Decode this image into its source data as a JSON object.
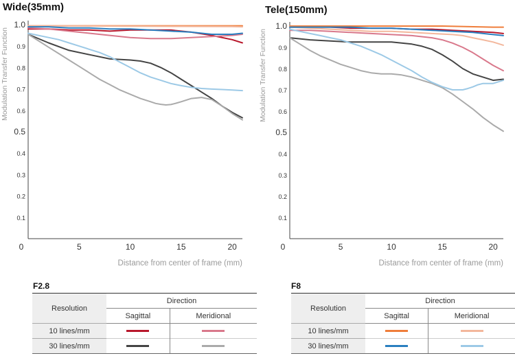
{
  "chart_data": [
    {
      "type": "line",
      "title": "Wide(35mm)",
      "xlabel": "Distance from center of frame (mm)",
      "ylabel": "Modulation Transfer Function",
      "xlim": [
        0,
        21
      ],
      "ylim": [
        0,
        1.0
      ],
      "xticks": [
        "0",
        "5",
        "10",
        "15",
        "20"
      ],
      "yticks": [
        "1.0",
        "0.9",
        "0.8",
        "0.7",
        "0.6",
        "0.5",
        "0.4",
        "0.3",
        "0.2",
        "0.1"
      ],
      "series": [
        {
          "name": "10 lines/mm Sagittal",
          "color": "#b8172b",
          "x": [
            0,
            2,
            4,
            6,
            8,
            10,
            12,
            14,
            16,
            18,
            20,
            21
          ],
          "y": [
            0.98,
            0.98,
            0.975,
            0.975,
            0.97,
            0.975,
            0.975,
            0.975,
            0.965,
            0.95,
            0.93,
            0.915
          ]
        },
        {
          "name": "10 lines/mm Meridional",
          "color": "#d9788b",
          "x": [
            0,
            2,
            4,
            6,
            8,
            10,
            12,
            14,
            16,
            18,
            20,
            21
          ],
          "y": [
            0.985,
            0.98,
            0.97,
            0.96,
            0.95,
            0.94,
            0.935,
            0.935,
            0.94,
            0.945,
            0.95,
            0.955
          ]
        },
        {
          "name": "30 lines/mm Sagittal",
          "color": "#444444",
          "x": [
            0,
            2,
            4,
            6,
            8,
            10,
            11,
            12,
            13,
            14,
            15,
            16,
            17,
            18,
            19,
            20,
            21
          ],
          "y": [
            0.955,
            0.915,
            0.88,
            0.86,
            0.84,
            0.835,
            0.83,
            0.82,
            0.8,
            0.775,
            0.745,
            0.715,
            0.685,
            0.655,
            0.62,
            0.59,
            0.565
          ]
        },
        {
          "name": "30 lines/mm Meridional",
          "color": "#aaaaaa",
          "x": [
            0,
            1,
            2,
            3,
            4,
            5,
            6,
            7,
            8,
            9,
            10,
            11,
            12,
            12.5,
            13,
            13.5,
            14,
            14.5,
            15,
            16,
            17,
            18,
            19,
            20,
            21
          ],
          "y": [
            0.955,
            0.925,
            0.895,
            0.865,
            0.835,
            0.805,
            0.775,
            0.745,
            0.72,
            0.695,
            0.675,
            0.655,
            0.64,
            0.632,
            0.628,
            0.625,
            0.627,
            0.633,
            0.64,
            0.655,
            0.66,
            0.65,
            0.62,
            0.585,
            0.555
          ]
        },
        {
          "name": "F8 10 lines/mm Sagittal",
          "color": "#ef7d3a",
          "x": [
            0,
            5,
            10,
            15,
            20,
            21
          ],
          "y": [
            0.995,
            0.995,
            0.995,
            0.995,
            0.995,
            0.995
          ]
        },
        {
          "name": "F8 10 lines/mm Meridional",
          "color": "#f3b79c",
          "x": [
            0,
            5,
            10,
            15,
            20,
            21
          ],
          "y": [
            0.995,
            0.994,
            0.993,
            0.992,
            0.991,
            0.99
          ]
        },
        {
          "name": "F8 30 lines/mm Sagittal",
          "color": "#2a7fc0",
          "x": [
            0,
            2,
            4,
            6,
            8,
            10,
            12,
            14,
            16,
            18,
            20,
            21
          ],
          "y": [
            0.99,
            0.99,
            0.985,
            0.985,
            0.98,
            0.98,
            0.975,
            0.97,
            0.965,
            0.955,
            0.955,
            0.96
          ]
        },
        {
          "name": "F8 30 lines/mm Meridional",
          "color": "#9cc9e6",
          "x": [
            0,
            1,
            2,
            3,
            4,
            5,
            6,
            7,
            8,
            9,
            10,
            11,
            12,
            13,
            14,
            15,
            16,
            17,
            18,
            19,
            20,
            21
          ],
          "y": [
            0.96,
            0.95,
            0.94,
            0.93,
            0.915,
            0.9,
            0.885,
            0.87,
            0.85,
            0.825,
            0.8,
            0.775,
            0.755,
            0.74,
            0.725,
            0.715,
            0.707,
            0.702,
            0.699,
            0.697,
            0.695,
            0.692
          ]
        }
      ]
    },
    {
      "type": "line",
      "title": "Tele(150mm)",
      "xlabel": "Distance from center of frame (mm)",
      "ylabel": "Modulation Transfer Function",
      "xlim": [
        0,
        21
      ],
      "ylim": [
        0,
        1.0
      ],
      "xticks": [
        "0",
        "5",
        "10",
        "15",
        "20"
      ],
      "yticks": [
        "1.0",
        "0.9",
        "0.8",
        "0.7",
        "0.6",
        "0.5",
        "0.4",
        "0.3",
        "0.2",
        "0.1"
      ],
      "series": [
        {
          "name": "10 lines/mm Sagittal",
          "color": "#b8172b",
          "x": [
            0,
            2,
            4,
            6,
            8,
            10,
            12,
            14,
            16,
            18,
            20,
            21
          ],
          "y": [
            0.995,
            0.995,
            0.995,
            0.99,
            0.99,
            0.99,
            0.985,
            0.985,
            0.98,
            0.975,
            0.97,
            0.965
          ]
        },
        {
          "name": "10 lines/mm Meridional",
          "color": "#d9788b",
          "x": [
            0,
            2,
            4,
            6,
            8,
            10,
            12,
            14,
            15,
            16,
            17,
            18,
            19,
            20,
            21
          ],
          "y": [
            0.98,
            0.98,
            0.975,
            0.97,
            0.965,
            0.96,
            0.955,
            0.945,
            0.935,
            0.92,
            0.9,
            0.875,
            0.845,
            0.815,
            0.79
          ]
        },
        {
          "name": "30 lines/mm Sagittal",
          "color": "#444444",
          "x": [
            0,
            2,
            4,
            6,
            8,
            10,
            12,
            13,
            14,
            15,
            16,
            17,
            18,
            19,
            20,
            21
          ],
          "y": [
            0.945,
            0.935,
            0.93,
            0.925,
            0.925,
            0.925,
            0.915,
            0.905,
            0.89,
            0.865,
            0.835,
            0.8,
            0.775,
            0.76,
            0.745,
            0.75
          ]
        },
        {
          "name": "30 lines/mm Meridional",
          "color": "#aaaaaa",
          "x": [
            0,
            1,
            2,
            3,
            4,
            5,
            6,
            7,
            8,
            9,
            10,
            11,
            12,
            13,
            14,
            15,
            16,
            17,
            18,
            19,
            20,
            21
          ],
          "y": [
            0.945,
            0.915,
            0.885,
            0.86,
            0.84,
            0.82,
            0.805,
            0.79,
            0.78,
            0.775,
            0.775,
            0.77,
            0.76,
            0.745,
            0.73,
            0.71,
            0.68,
            0.645,
            0.61,
            0.57,
            0.535,
            0.505
          ]
        },
        {
          "name": "F8 10 lines/mm Sagittal",
          "color": "#ef7d3a",
          "x": [
            0,
            5,
            10,
            15,
            20,
            21
          ],
          "y": [
            1.0,
            1.0,
            1.0,
            1.0,
            0.995,
            0.995
          ]
        },
        {
          "name": "F8 10 lines/mm Meridional",
          "color": "#f3b79c",
          "x": [
            0,
            2,
            4,
            6,
            8,
            10,
            12,
            14,
            16,
            17,
            18,
            19,
            20,
            21
          ],
          "y": [
            0.995,
            0.99,
            0.985,
            0.98,
            0.975,
            0.975,
            0.97,
            0.965,
            0.96,
            0.955,
            0.945,
            0.935,
            0.925,
            0.91
          ]
        },
        {
          "name": "F8 30 lines/mm Sagittal",
          "color": "#2a7fc0",
          "x": [
            0,
            2,
            4,
            6,
            8,
            10,
            12,
            14,
            16,
            18,
            20,
            21
          ],
          "y": [
            0.995,
            0.995,
            0.995,
            0.995,
            0.99,
            0.99,
            0.985,
            0.98,
            0.975,
            0.97,
            0.96,
            0.955
          ]
        },
        {
          "name": "F8 30 lines/mm Meridional",
          "color": "#9cc9e6",
          "x": [
            0,
            1,
            2,
            3,
            4,
            5,
            6,
            7,
            8,
            9,
            10,
            11,
            12,
            13,
            14,
            15,
            16,
            17,
            17.5,
            18,
            18.5,
            19,
            20,
            21
          ],
          "y": [
            0.985,
            0.975,
            0.965,
            0.955,
            0.945,
            0.935,
            0.92,
            0.905,
            0.885,
            0.865,
            0.84,
            0.815,
            0.79,
            0.76,
            0.735,
            0.715,
            0.7,
            0.7,
            0.706,
            0.714,
            0.724,
            0.73,
            0.73,
            0.745
          ]
        }
      ]
    }
  ],
  "legend_left": {
    "heading": "F2.8",
    "resolution_label": "Resolution",
    "direction_label": "Direction",
    "sagittal_label": "Sagittal",
    "meridional_label": "Meridional",
    "rows": [
      {
        "label": "10 lines/mm",
        "sagittal_color": "#b8172b",
        "meridional_color": "#d9788b"
      },
      {
        "label": "30 lines/mm",
        "sagittal_color": "#444444",
        "meridional_color": "#aaaaaa"
      }
    ]
  },
  "legend_right": {
    "heading": "F8",
    "resolution_label": "Resolution",
    "direction_label": "Direction",
    "sagittal_label": "Sagittal",
    "meridional_label": "Meridional",
    "rows": [
      {
        "label": "10 lines/mm",
        "sagittal_color": "#ef7d3a",
        "meridional_color": "#f3b79c"
      },
      {
        "label": "30 lines/mm",
        "sagittal_color": "#2a7fc0",
        "meridional_color": "#9cc9e6"
      }
    ]
  }
}
